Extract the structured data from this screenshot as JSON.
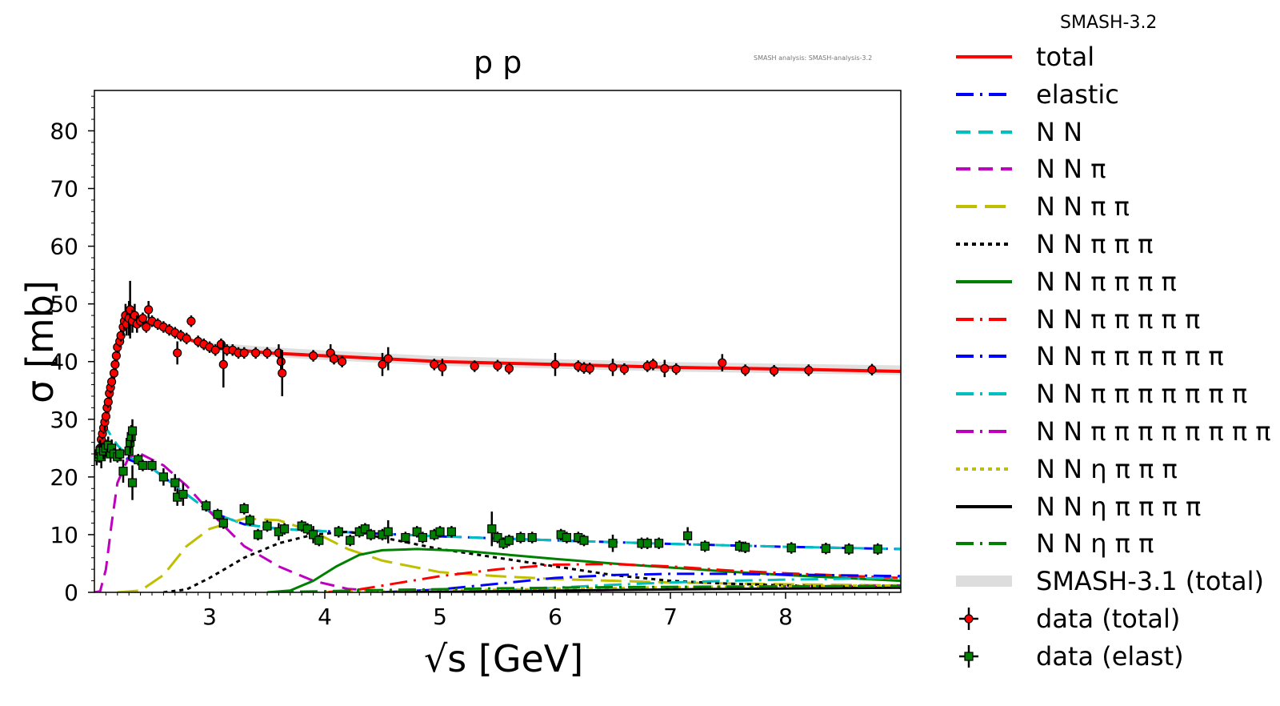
{
  "chart_data": {
    "type": "line",
    "title": "p p",
    "watermark": "SMASH analysis: SMASH-analysis-3.2",
    "xlabel": "√s [GeV]",
    "ylabel": "σ [mb]",
    "xlim": [
      2.0,
      9.0
    ],
    "ylim": [
      0,
      87
    ],
    "xticks": [
      3,
      4,
      5,
      6,
      7,
      8
    ],
    "yticks": [
      0,
      10,
      20,
      30,
      40,
      50,
      60,
      70,
      80
    ],
    "legend_title": "SMASH-3.2",
    "legend_position": "outside-right",
    "series": [
      {
        "name": "total",
        "color": "#ff0000",
        "dash": "solid",
        "width": 4,
        "x": [
          2.0,
          2.05,
          2.1,
          2.15,
          2.2,
          2.25,
          2.3,
          2.4,
          2.5,
          2.7,
          3.0,
          3.5,
          4.0,
          5.0,
          6.0,
          7.0,
          8.0,
          9.0
        ],
        "y": [
          23,
          25,
          29,
          35,
          41,
          45.5,
          47.5,
          47.2,
          46.5,
          44.8,
          42.5,
          41.5,
          41.0,
          40.0,
          39.5,
          39.0,
          38.7,
          38.3
        ]
      },
      {
        "name": "elastic",
        "color": "#0000ff",
        "dash": "dashdot",
        "width": 3,
        "x": [
          2.0,
          2.1,
          2.2,
          2.3,
          2.5,
          2.8,
          3.0,
          3.3,
          3.6,
          4.0,
          5.0,
          6.0,
          7.0,
          8.0,
          9.0
        ],
        "y": [
          24,
          24,
          24,
          23,
          21.5,
          17,
          14,
          11.8,
          11,
          10.6,
          9.7,
          9.0,
          8.4,
          7.9,
          7.5
        ]
      },
      {
        "name": "N N",
        "color": "#00bfbf",
        "dash": "dash",
        "width": 3,
        "x": [
          2.0,
          2.05,
          2.1,
          2.15,
          2.2,
          2.3,
          2.5,
          2.8,
          3.0,
          3.3,
          3.6,
          4.0,
          5.0,
          6.0,
          7.0,
          8.0,
          9.0
        ],
        "y": [
          24,
          26,
          28.5,
          27,
          25.5,
          23.5,
          21.5,
          17,
          14,
          11.8,
          11,
          10.6,
          9.7,
          9.0,
          8.4,
          7.9,
          7.5
        ]
      },
      {
        "name": "N N π",
        "color": "#bf00bf",
        "dash": "dash",
        "width": 3,
        "x": [
          2.0,
          2.05,
          2.1,
          2.15,
          2.2,
          2.3,
          2.4,
          2.6,
          2.8,
          3.0,
          3.3,
          3.6,
          3.9,
          4.2,
          4.5
        ],
        "y": [
          0,
          0.2,
          4,
          12,
          19,
          23.5,
          24,
          22,
          18.5,
          14,
          8,
          4.5,
          2,
          0.6,
          0.2
        ]
      },
      {
        "name": "N N π π",
        "color": "#bfbf00",
        "dash": "longdash",
        "width": 3,
        "x": [
          2.2,
          2.4,
          2.6,
          2.8,
          3.0,
          3.3,
          3.6,
          3.9,
          4.2,
          4.5,
          5.0,
          5.5,
          6.0,
          7.0,
          8.0,
          9.0
        ],
        "y": [
          0,
          0.3,
          3,
          8,
          11,
          12.8,
          12.5,
          10.5,
          7.5,
          5.5,
          3.5,
          2.8,
          2.3,
          1.7,
          1.4,
          1.2
        ]
      },
      {
        "name": "N N π π π",
        "color": "#000000",
        "dash": "dot",
        "width": 3,
        "x": [
          2.6,
          2.8,
          3.0,
          3.3,
          3.6,
          3.9,
          4.2,
          4.5,
          5.0,
          5.5,
          6.0,
          6.5,
          7.0,
          7.5,
          8.0,
          9.0
        ],
        "y": [
          0,
          0.5,
          2.5,
          6,
          8.5,
          10,
          10.5,
          9.5,
          7.5,
          6,
          4.5,
          3,
          2,
          1.5,
          1.2,
          0.8
        ]
      },
      {
        "name": "N N π π π π",
        "color": "#008000",
        "dash": "solid",
        "width": 3,
        "x": [
          3.5,
          3.7,
          3.9,
          4.1,
          4.3,
          4.5,
          4.8,
          5.2,
          5.6,
          6.0,
          6.5,
          7.0,
          7.5,
          8.0,
          9.0
        ],
        "y": [
          0,
          0.3,
          2,
          4.5,
          6.5,
          7.3,
          7.5,
          7.2,
          6.5,
          5.8,
          5,
          4.3,
          3.6,
          3,
          2
        ]
      },
      {
        "name": "N N π π π π π",
        "color": "#ff0000",
        "dash": "dashdot",
        "width": 3,
        "x": [
          4.0,
          4.3,
          4.6,
          5.0,
          5.5,
          6.0,
          6.5,
          7.0,
          7.5,
          8.0,
          9.0
        ],
        "y": [
          0,
          0.5,
          1.5,
          2.8,
          4,
          4.8,
          4.9,
          4.5,
          3.8,
          3.3,
          2.5
        ]
      },
      {
        "name": "N N π π π π π π",
        "color": "#0000ff",
        "dash": "dashdot",
        "width": 3,
        "x": [
          4.5,
          5.0,
          5.5,
          6.0,
          6.5,
          7.0,
          7.5,
          8.0,
          9.0
        ],
        "y": [
          0,
          0.5,
          1.5,
          2.5,
          3,
          3.2,
          3.2,
          3.1,
          2.8
        ]
      },
      {
        "name": "N N π π π π π π π",
        "color": "#00bfbf",
        "dash": "dashdot",
        "width": 3,
        "x": [
          5.0,
          5.5,
          6.0,
          6.5,
          7.0,
          7.5,
          8.0,
          9.0
        ],
        "y": [
          0,
          0.3,
          0.8,
          1.3,
          1.7,
          2.0,
          2.2,
          2.5
        ]
      },
      {
        "name": "N N π π π π π π π π",
        "color": "#bf00bf",
        "dash": "dashdot",
        "width": 3,
        "x": [
          5.5,
          6.0,
          6.5,
          7.0,
          7.5,
          8.0,
          9.0
        ],
        "y": [
          0,
          0.2,
          0.4,
          0.6,
          0.8,
          1.0,
          1.2
        ]
      },
      {
        "name": "N N η π π π",
        "color": "#bfbf00",
        "dash": "dot",
        "width": 3,
        "x": [
          4.0,
          5.0,
          6.0,
          7.0,
          8.0,
          9.0
        ],
        "y": [
          0,
          0.3,
          0.6,
          0.9,
          1.1,
          1.2
        ]
      },
      {
        "name": "N N η π π π π",
        "color": "#000000",
        "dash": "solid",
        "width": 3,
        "x": [
          4.5,
          5.5,
          6.5,
          7.5,
          9.0
        ],
        "y": [
          0,
          0.2,
          0.4,
          0.6,
          0.8
        ]
      },
      {
        "name": "N N η π π",
        "color": "#008000",
        "dash": "dashdot",
        "width": 3,
        "x": [
          3.5,
          4.5,
          5.5,
          6.5,
          7.5,
          9.0
        ],
        "y": [
          0,
          0.4,
          0.7,
          0.9,
          1.0,
          1.1
        ]
      },
      {
        "name": "SMASH-3.1 (total)",
        "color": "#dddddd",
        "dash": "solid",
        "width": 12,
        "x": [
          3.0,
          3.5,
          4.0,
          5.0,
          6.0,
          7.0,
          8.0,
          9.0
        ],
        "y": [
          42.5,
          41.7,
          41.1,
          40.1,
          39.6,
          39.1,
          38.8,
          38.5
        ]
      }
    ],
    "data_total": {
      "name": "data (total)",
      "color": "#ff0000",
      "points": [
        [
          2.02,
          23.5,
          1
        ],
        [
          2.05,
          25,
          1
        ],
        [
          2.06,
          26.5,
          1
        ],
        [
          2.07,
          27.5,
          1
        ],
        [
          2.08,
          28.5,
          1
        ],
        [
          2.09,
          29.5,
          1.5
        ],
        [
          2.1,
          30.5,
          1
        ],
        [
          2.11,
          32,
          1
        ],
        [
          2.12,
          33,
          1
        ],
        [
          2.13,
          34.5,
          1
        ],
        [
          2.14,
          35.5,
          1
        ],
        [
          2.15,
          36.5,
          1
        ],
        [
          2.17,
          38,
          1
        ],
        [
          2.18,
          39.5,
          1
        ],
        [
          2.19,
          41,
          1
        ],
        [
          2.2,
          42.5,
          1
        ],
        [
          2.22,
          43.5,
          1
        ],
        [
          2.23,
          44.5,
          1
        ],
        [
          2.25,
          46,
          1.5
        ],
        [
          2.26,
          47,
          1.5
        ],
        [
          2.27,
          48,
          2
        ],
        [
          2.28,
          46.5,
          2
        ],
        [
          2.3,
          47.5,
          3
        ],
        [
          2.31,
          49,
          5
        ],
        [
          2.33,
          47,
          2
        ],
        [
          2.35,
          48,
          2
        ],
        [
          2.37,
          46.5,
          1.5
        ],
        [
          2.4,
          47,
          1
        ],
        [
          2.42,
          47.5,
          1
        ],
        [
          2.45,
          46,
          1
        ],
        [
          2.47,
          49,
          1.5
        ],
        [
          2.5,
          47,
          1
        ],
        [
          2.55,
          46.5,
          1
        ],
        [
          2.6,
          46,
          1
        ],
        [
          2.65,
          45.5,
          1
        ],
        [
          2.7,
          45,
          1
        ],
        [
          2.72,
          41.5,
          2
        ],
        [
          2.75,
          44.5,
          1
        ],
        [
          2.8,
          44,
          1
        ],
        [
          2.84,
          47,
          1
        ],
        [
          2.9,
          43.5,
          1
        ],
        [
          2.95,
          43,
          1
        ],
        [
          3.0,
          42.5,
          1
        ],
        [
          3.05,
          42,
          1
        ],
        [
          3.1,
          43,
          1
        ],
        [
          3.12,
          39.5,
          4
        ],
        [
          3.15,
          42,
          1
        ],
        [
          3.2,
          42,
          1
        ],
        [
          3.25,
          41.5,
          1
        ],
        [
          3.3,
          41.5,
          1
        ],
        [
          3.4,
          41.5,
          1
        ],
        [
          3.5,
          41.5,
          1
        ],
        [
          3.6,
          41.5,
          1.5
        ],
        [
          3.62,
          40,
          2
        ],
        [
          3.63,
          38,
          4
        ],
        [
          3.9,
          41,
          1
        ],
        [
          4.05,
          41.5,
          1.5
        ],
        [
          4.08,
          40.5,
          1
        ],
        [
          4.15,
          40,
          1
        ],
        [
          4.5,
          39.5,
          2
        ],
        [
          4.55,
          40.5,
          2
        ],
        [
          4.95,
          39.5,
          1
        ],
        [
          5.02,
          39,
          1.5
        ],
        [
          5.3,
          39.2,
          1
        ],
        [
          5.5,
          39.3,
          1
        ],
        [
          5.6,
          38.8,
          1
        ],
        [
          6.0,
          39.5,
          2
        ],
        [
          6.2,
          39.2,
          1
        ],
        [
          6.25,
          38.9,
          1
        ],
        [
          6.3,
          38.8,
          1
        ],
        [
          6.5,
          39,
          1.5
        ],
        [
          6.6,
          38.7,
          1
        ],
        [
          6.8,
          39.2,
          1
        ],
        [
          6.85,
          39.5,
          1
        ],
        [
          6.95,
          38.8,
          1.5
        ],
        [
          7.05,
          38.7,
          1
        ],
        [
          7.45,
          39.8,
          1.5
        ],
        [
          7.65,
          38.5,
          1
        ],
        [
          7.9,
          38.4,
          1
        ],
        [
          8.2,
          38.5,
          1
        ],
        [
          8.75,
          38.6,
          1
        ]
      ]
    },
    "data_elast": {
      "name": "data (elast)",
      "color": "#008000",
      "points": [
        [
          2.02,
          23.5,
          1.5
        ],
        [
          2.04,
          24,
          1.5
        ],
        [
          2.05,
          24.5,
          2
        ],
        [
          2.06,
          23.5,
          2
        ],
        [
          2.08,
          24.5,
          1.5
        ],
        [
          2.1,
          25,
          1.5
        ],
        [
          2.12,
          25.5,
          1.5
        ],
        [
          2.14,
          24,
          1.5
        ],
        [
          2.15,
          25,
          1.5
        ],
        [
          2.17,
          24,
          1
        ],
        [
          2.2,
          23.5,
          1
        ],
        [
          2.22,
          24,
          1
        ],
        [
          2.25,
          21,
          2
        ],
        [
          2.3,
          24.5,
          1.5
        ],
        [
          2.31,
          26,
          2
        ],
        [
          2.32,
          27,
          2
        ],
        [
          2.33,
          28,
          2
        ],
        [
          2.33,
          19,
          3
        ],
        [
          2.38,
          23,
          1
        ],
        [
          2.42,
          22,
          1
        ],
        [
          2.5,
          22,
          1
        ],
        [
          2.6,
          20,
          1.5
        ],
        [
          2.7,
          19,
          1.5
        ],
        [
          2.72,
          16.5,
          1.5
        ],
        [
          2.77,
          17,
          2
        ],
        [
          2.97,
          15,
          1
        ],
        [
          3.07,
          13.5,
          1
        ],
        [
          3.12,
          12,
          1
        ],
        [
          3.3,
          14.5,
          1
        ],
        [
          3.35,
          12.5,
          1
        ],
        [
          3.42,
          10,
          1
        ],
        [
          3.5,
          11.5,
          1
        ],
        [
          3.6,
          10.5,
          1.5
        ],
        [
          3.65,
          11,
          1
        ],
        [
          3.8,
          11.5,
          1
        ],
        [
          3.85,
          11,
          1
        ],
        [
          3.9,
          10,
          1.5
        ],
        [
          3.95,
          9,
          1
        ],
        [
          4.12,
          10.5,
          1
        ],
        [
          4.22,
          9,
          1
        ],
        [
          4.3,
          10.5,
          1
        ],
        [
          4.35,
          11,
          1
        ],
        [
          4.4,
          10,
          1
        ],
        [
          4.5,
          10,
          1
        ],
        [
          4.55,
          10.5,
          2
        ],
        [
          4.7,
          9.5,
          1
        ],
        [
          4.8,
          10.5,
          1
        ],
        [
          4.85,
          9.5,
          1
        ],
        [
          4.95,
          10,
          1
        ],
        [
          5.0,
          10.5,
          1
        ],
        [
          5.1,
          10.5,
          1
        ],
        [
          5.45,
          11,
          3
        ],
        [
          5.5,
          9.5,
          1
        ],
        [
          5.55,
          8.5,
          1
        ],
        [
          5.6,
          9,
          1
        ],
        [
          5.7,
          9.5,
          1
        ],
        [
          5.8,
          9.5,
          1
        ],
        [
          6.05,
          10,
          1
        ],
        [
          6.1,
          9.5,
          1
        ],
        [
          6.2,
          9.5,
          1
        ],
        [
          6.25,
          9,
          1
        ],
        [
          6.5,
          8.5,
          1.5
        ],
        [
          6.75,
          8.5,
          1
        ],
        [
          6.8,
          8.5,
          1
        ],
        [
          6.9,
          8.5,
          1
        ],
        [
          7.15,
          9.8,
          1.5
        ],
        [
          7.3,
          8,
          1
        ],
        [
          7.6,
          8,
          1
        ],
        [
          7.65,
          7.8,
          1
        ],
        [
          8.05,
          7.7,
          1
        ],
        [
          8.35,
          7.6,
          1
        ],
        [
          8.55,
          7.5,
          1
        ],
        [
          8.8,
          7.5,
          1
        ]
      ]
    }
  }
}
